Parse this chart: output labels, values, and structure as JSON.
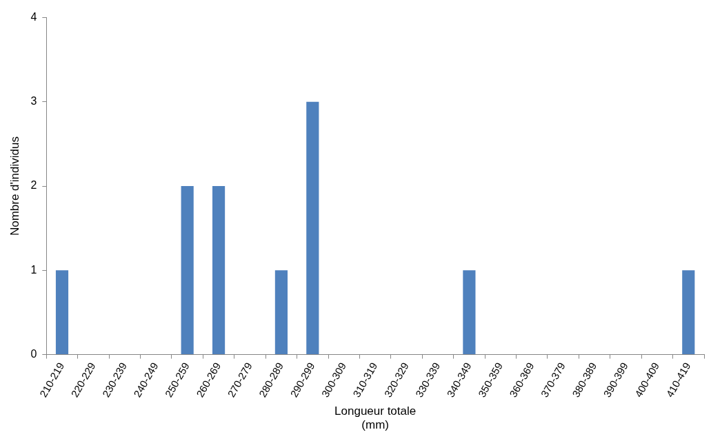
{
  "chart_data": {
    "type": "bar",
    "xlabel": "Longueur totale\n(mm)",
    "ylabel": "Nombre d'individus",
    "categories": [
      "210-219",
      "220-229",
      "230-239",
      "240-249",
      "250-259",
      "260-269",
      "270-279",
      "280-289",
      "290-299",
      "300-309",
      "310-319",
      "320-329",
      "330-339",
      "340-349",
      "350-359",
      "360-369",
      "370-379",
      "380-389",
      "390-399",
      "400-409",
      "410-419"
    ],
    "values": [
      1,
      0,
      0,
      0,
      2,
      2,
      0,
      1,
      3,
      0,
      0,
      0,
      0,
      1,
      0,
      0,
      0,
      0,
      0,
      0,
      1
    ],
    "color": "#4f81bd",
    "ylim": [
      0,
      4
    ],
    "yticks": [
      0,
      1,
      2,
      3,
      4
    ],
    "grid": false,
    "legend": false
  }
}
